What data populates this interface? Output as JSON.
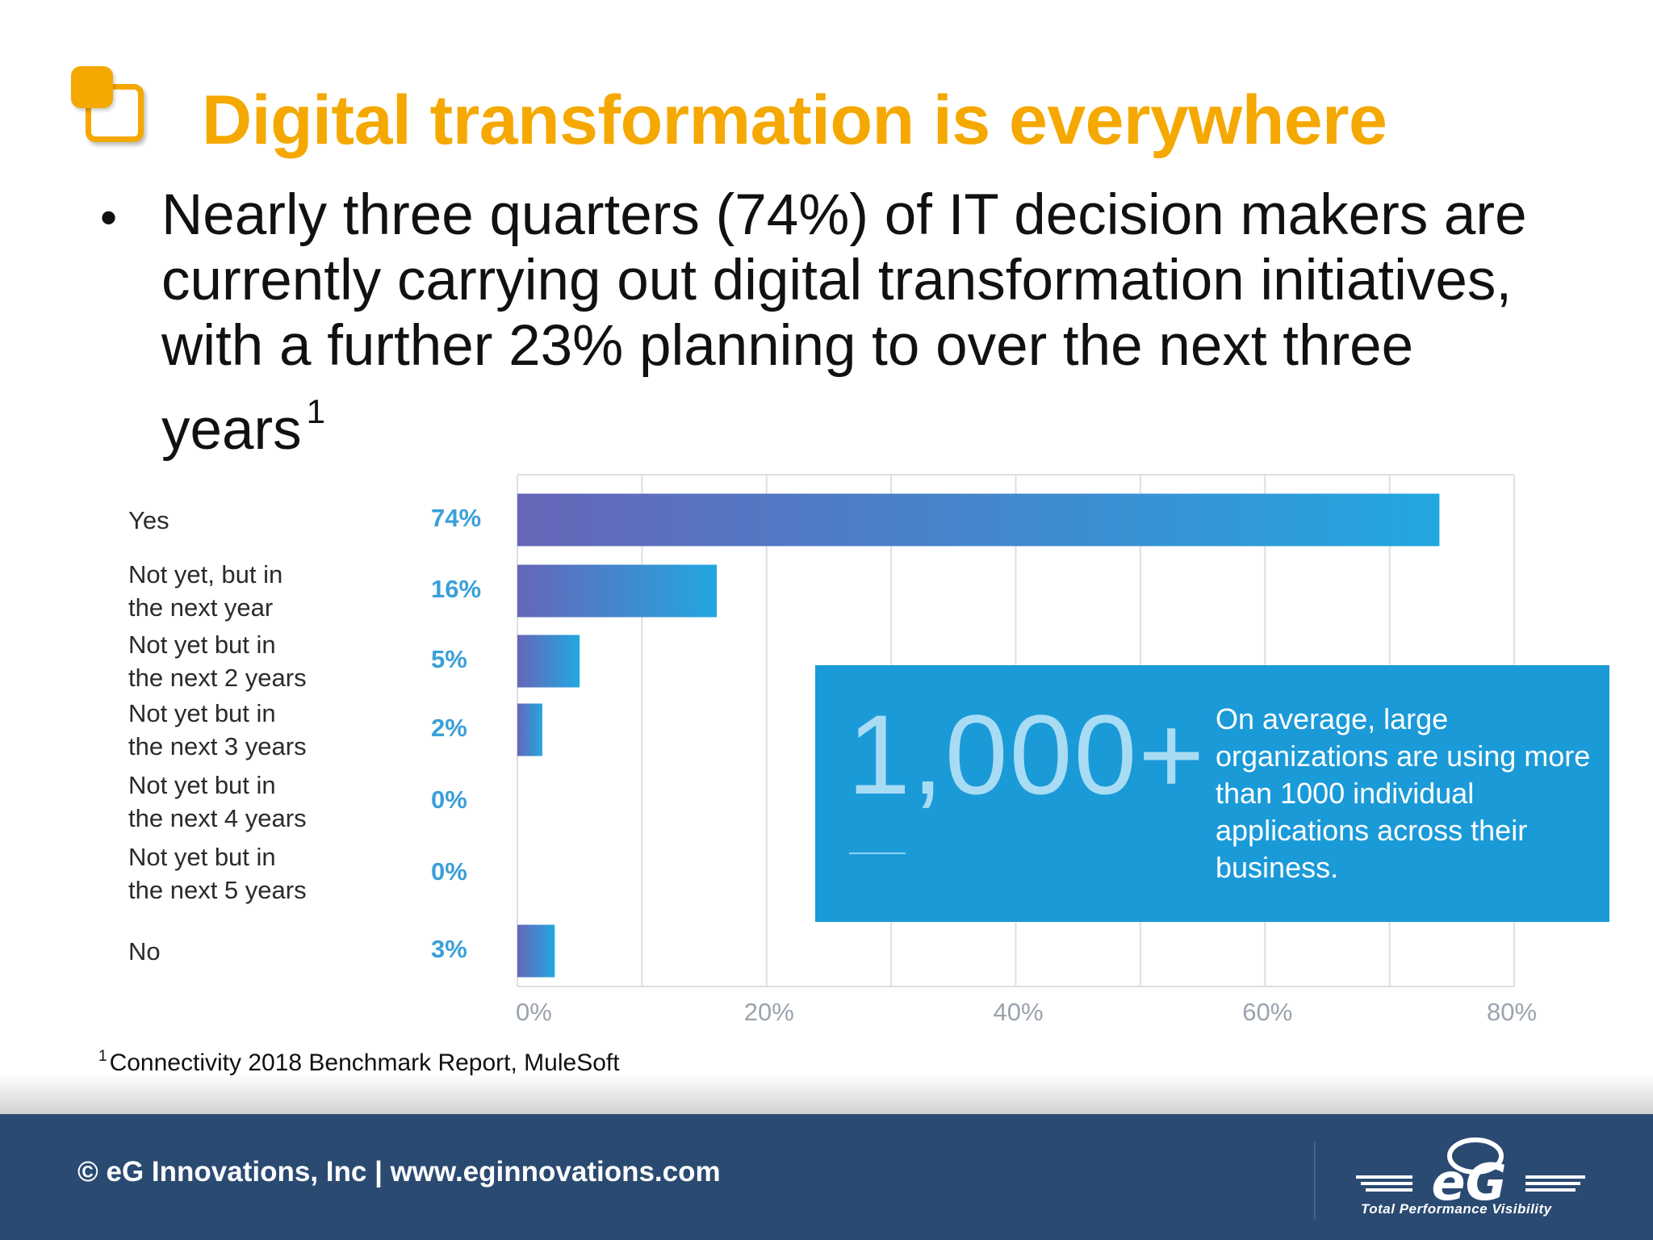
{
  "slide": {
    "title": "Digital transformation is everywhere",
    "bullet_symbol": "•",
    "bullet_text": "Nearly three quarters (74%) of IT decision makers are currently carrying out digital transformation initiatives, with a further 23% planning to over the next three years",
    "bullet_superscript": "1",
    "footnote_marker": "1",
    "footnote_text": "Connectivity 2018 Benchmark Report, MuleSoft"
  },
  "colors": {
    "title": "#f5a800",
    "bar_start": "#6666b8",
    "bar_end": "#22a7e0",
    "percent_label": "#3aa0d8",
    "callout_bg": "#1b9ad8",
    "footer_bg": "#2a4a72"
  },
  "chart_data": {
    "type": "bar",
    "orientation": "horizontal",
    "categories": [
      "Yes",
      "Not yet, but in\nthe next year",
      "Not yet but in\nthe next 2 years",
      "Not yet but in\nthe next 3 years",
      "Not yet but in\nthe next 4 years",
      "Not yet but in\nthe next 5 years",
      "No"
    ],
    "values": [
      74,
      16,
      5,
      2,
      0,
      0,
      3
    ],
    "value_labels": [
      "74%",
      "16%",
      "5%",
      "2%",
      "0%",
      "0%",
      "3%"
    ],
    "x_ticks": [
      "0%",
      "20%",
      "40%",
      "60%",
      "80%"
    ],
    "xlim": [
      0,
      80
    ],
    "grid": true,
    "title": "",
    "xlabel": "",
    "ylabel": ""
  },
  "callout": {
    "number": "1,000+",
    "text": "On average, large organizations are using more than 1000 individual applications across their business."
  },
  "footer": {
    "text": "© eG Innovations, Inc  |  www.eginnovations.com",
    "logo_mark": "eG",
    "logo_tagline": "Total Performance Visibility"
  }
}
